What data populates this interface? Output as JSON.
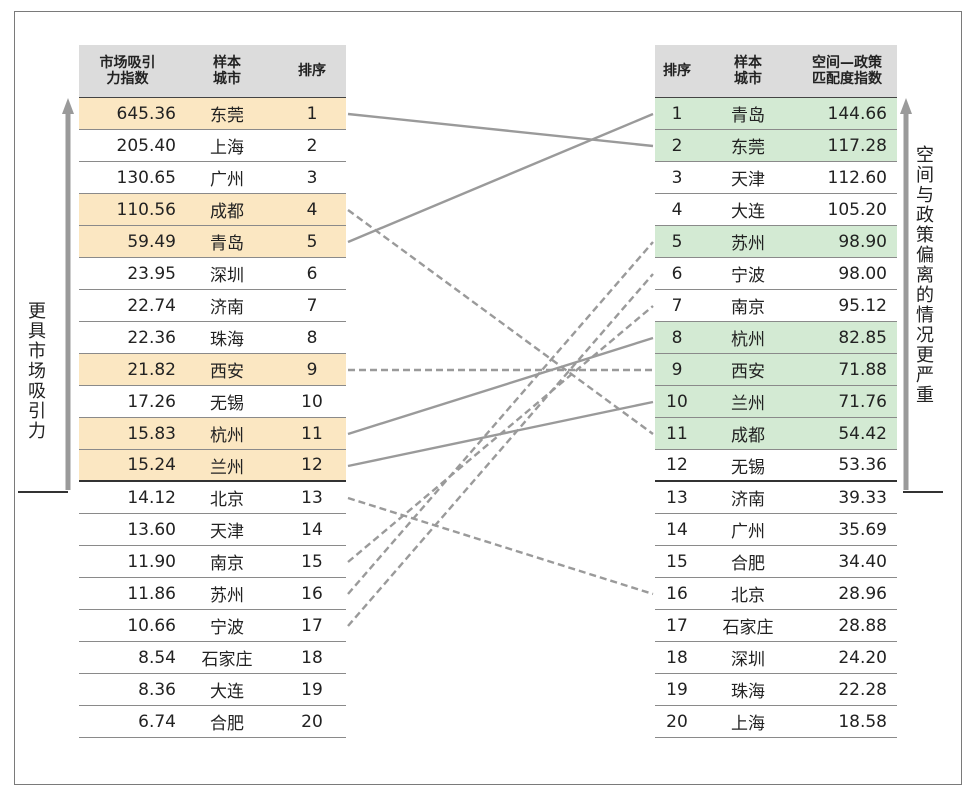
{
  "left_table": {
    "headers": [
      "市场吸引\n力指数",
      "样本\n城市",
      "排序"
    ],
    "rows": [
      [
        "645.36",
        "东莞",
        "1"
      ],
      [
        "205.40",
        "上海",
        "2"
      ],
      [
        "130.65",
        "广州",
        "3"
      ],
      [
        "110.56",
        "成都",
        "4"
      ],
      [
        "59.49",
        "青岛",
        "5"
      ],
      [
        "23.95",
        "深圳",
        "6"
      ],
      [
        "22.74",
        "济南",
        "7"
      ],
      [
        "22.36",
        "珠海",
        "8"
      ],
      [
        "21.82",
        "西安",
        "9"
      ],
      [
        "17.26",
        "无锡",
        "10"
      ],
      [
        "15.83",
        "杭州",
        "11"
      ],
      [
        "15.24",
        "兰州",
        "12"
      ],
      [
        "14.12",
        "北京",
        "13"
      ],
      [
        "13.60",
        "天津",
        "14"
      ],
      [
        "11.90",
        "南京",
        "15"
      ],
      [
        "11.86",
        "苏州",
        "16"
      ],
      [
        "10.66",
        "宁波",
        "17"
      ],
      [
        "8.54",
        "石家庄",
        "18"
      ],
      [
        "8.36",
        "大连",
        "19"
      ],
      [
        "6.74",
        "合肥",
        "20"
      ]
    ],
    "highlighted_ranks": [
      1,
      4,
      5,
      9,
      11,
      12
    ],
    "separator_after_rank": 12
  },
  "right_table": {
    "headers": [
      "排序",
      "样本\n城市",
      "空间—政策\n匹配度指数"
    ],
    "rows": [
      [
        "1",
        "青岛",
        "144.66"
      ],
      [
        "2",
        "东莞",
        "117.28"
      ],
      [
        "3",
        "天津",
        "112.60"
      ],
      [
        "4",
        "大连",
        "105.20"
      ],
      [
        "5",
        "苏州",
        "98.90"
      ],
      [
        "6",
        "宁波",
        "98.00"
      ],
      [
        "7",
        "南京",
        "95.12"
      ],
      [
        "8",
        "杭州",
        "82.85"
      ],
      [
        "9",
        "西安",
        "71.88"
      ],
      [
        "10",
        "兰州",
        "71.76"
      ],
      [
        "11",
        "成都",
        "54.42"
      ],
      [
        "12",
        "无锡",
        "53.36"
      ],
      [
        "13",
        "济南",
        "39.33"
      ],
      [
        "14",
        "广州",
        "35.69"
      ],
      [
        "15",
        "合肥",
        "34.40"
      ],
      [
        "16",
        "北京",
        "28.96"
      ],
      [
        "17",
        "石家庄",
        "28.88"
      ],
      [
        "18",
        "深圳",
        "24.20"
      ],
      [
        "19",
        "珠海",
        "22.28"
      ],
      [
        "20",
        "上海",
        "18.58"
      ]
    ],
    "highlighted_ranks": [
      1,
      2,
      5,
      8,
      9,
      10,
      11
    ],
    "separator_after_rank": 12
  },
  "links": [
    {
      "from_rank": 1,
      "to_rank": 2,
      "style": "solid"
    },
    {
      "from_rank": 5,
      "to_rank": 1,
      "style": "solid"
    },
    {
      "from_rank": 11,
      "to_rank": 8,
      "style": "solid"
    },
    {
      "from_rank": 12,
      "to_rank": 10,
      "style": "solid"
    },
    {
      "from_rank": 4,
      "to_rank": 11,
      "style": "dashed"
    },
    {
      "from_rank": 9,
      "to_rank": 9,
      "style": "dashed"
    },
    {
      "from_rank": 13,
      "to_rank": 16,
      "style": "dashed"
    },
    {
      "from_rank": 15,
      "to_rank": 7,
      "style": "dashed"
    },
    {
      "from_rank": 16,
      "to_rank": 5,
      "style": "dashed"
    },
    {
      "from_rank": 17,
      "to_rank": 6,
      "style": "dashed"
    }
  ],
  "left_axis_label": "更\n具\n市\n场\n吸\n引\n力",
  "right_axis_label": "空\n间\n与\n政\n策\n偏\n离\n的\n情\n况\n更\n严\n重",
  "colors": {
    "left_highlight": "#fbe7c2",
    "right_highlight": "#d3ead3",
    "header_bg": "#dcdcdc",
    "link_color": "#9a9a9a",
    "arrow_color": "#9a9a9a"
  }
}
